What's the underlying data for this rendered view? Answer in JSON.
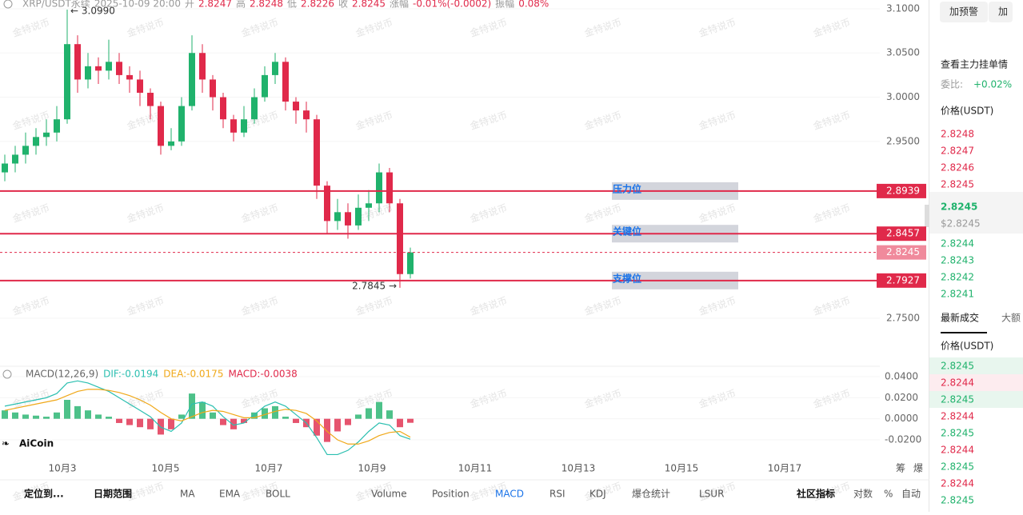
{
  "header": {
    "symbol": "XRP/USDT永续",
    "time": "2025-10-09 20:00",
    "open_label": "开",
    "open": "2.8247",
    "high_label": "高",
    "high": "2.8248",
    "low_label": "低",
    "low": "2.8226",
    "close_label": "收",
    "close": "2.8245",
    "change_label": "涨幅",
    "change": "-0.01%(-0.0002)",
    "amp_label": "振幅",
    "amp": "0.08%"
  },
  "watermark": "金特说币",
  "chart_data": [
    {
      "type": "candlestick",
      "ylim": [
        2.6985,
        3.1099
      ],
      "yticks": [
        {
          "value": 2.75,
          "label": "2.7500"
        },
        {
          "value": 2.95,
          "label": "2.9500"
        },
        {
          "value": 3.0,
          "label": "3.0000"
        },
        {
          "value": 3.05,
          "label": "3.0500"
        },
        {
          "value": 3.1,
          "label": "3.1000"
        }
      ],
      "open": [
        2.915,
        2.925,
        2.935,
        2.945,
        2.955,
        2.96,
        2.975,
        3.06,
        3.02,
        3.035,
        3.03,
        3.04,
        3.025,
        3.02,
        3.005,
        2.99,
        2.945,
        2.95,
        2.99,
        3.05,
        3.02,
        3.0,
        2.975,
        2.96,
        2.975,
        3.0,
        3.025,
        3.04,
        2.995,
        2.985,
        2.975,
        2.9,
        2.86,
        2.87,
        2.855,
        2.875,
        2.88,
        2.915,
        2.88,
        2.8
      ],
      "high": [
        2.935,
        2.945,
        2.96,
        2.965,
        2.975,
        2.99,
        3.099,
        3.07,
        3.05,
        3.045,
        3.065,
        3.05,
        3.035,
        3.03,
        3.01,
        2.995,
        2.965,
        3.0,
        3.07,
        3.06,
        3.025,
        3.005,
        2.98,
        2.99,
        3.01,
        3.035,
        3.05,
        3.045,
        3.0,
        2.995,
        2.98,
        2.905,
        2.885,
        2.88,
        2.89,
        2.895,
        2.925,
        2.92,
        2.885,
        2.83
      ],
      "low": [
        2.905,
        2.915,
        2.925,
        2.935,
        2.945,
        2.95,
        2.97,
        3.005,
        3.01,
        3.015,
        3.02,
        3.015,
        3.005,
        2.99,
        2.975,
        2.935,
        2.94,
        2.945,
        2.985,
        3.005,
        2.985,
        2.965,
        2.95,
        2.955,
        2.97,
        2.995,
        3.015,
        2.985,
        2.97,
        2.96,
        2.885,
        2.845,
        2.85,
        2.84,
        2.85,
        2.86,
        2.87,
        2.87,
        2.7845,
        2.795
      ],
      "close": [
        2.925,
        2.935,
        2.945,
        2.955,
        2.96,
        2.975,
        3.06,
        3.02,
        3.035,
        3.03,
        3.04,
        3.025,
        3.02,
        3.005,
        2.99,
        2.945,
        2.95,
        2.99,
        3.05,
        3.02,
        3.0,
        2.975,
        2.96,
        2.975,
        3.0,
        3.025,
        3.04,
        2.995,
        2.985,
        2.975,
        2.9,
        2.86,
        2.87,
        2.855,
        2.875,
        2.88,
        2.915,
        2.88,
        2.8,
        2.8245
      ],
      "max_note": "← 3.0990",
      "min_note": "2.7845 →",
      "levels": [
        {
          "label": "压力位",
          "value": 2.8939
        },
        {
          "label": "关键位",
          "value": 2.8457
        },
        {
          "label": "支撑位",
          "value": 2.7927
        }
      ],
      "current": 2.8245,
      "x_labels": [
        "10月3",
        "10月5",
        "10月7",
        "10月9",
        "10月11",
        "10月13",
        "10月15",
        "10月17"
      ]
    },
    {
      "type": "macd",
      "title": "MACD(12,26,9)",
      "dif_label": "DIF:-0.0194",
      "dea_label": "DEA:-0.0175",
      "macd_label": "MACD:-0.0038",
      "ylim": [
        -0.0352,
        0.0484
      ],
      "yticks": [
        {
          "value": -0.02,
          "label": "-0.0200"
        },
        {
          "value": 0,
          "label": "0.0000"
        },
        {
          "value": 0.02,
          "label": "0.0200"
        },
        {
          "value": 0.04,
          "label": "0.0400"
        }
      ],
      "series": [
        {
          "name": "DIF",
          "color": "#2bbfb0",
          "values": [
            0.012,
            0.014,
            0.016,
            0.018,
            0.02,
            0.024,
            0.034,
            0.036,
            0.034,
            0.03,
            0.026,
            0.02,
            0.014,
            0.008,
            0.002,
            -0.008,
            -0.012,
            -0.004,
            0.014,
            0.016,
            0.012,
            0.002,
            -0.006,
            -0.004,
            0.004,
            0.012,
            0.016,
            0.012,
            0.004,
            -0.004,
            -0.018,
            -0.034,
            -0.034,
            -0.03,
            -0.022,
            -0.012,
            -0.004,
            -0.006,
            -0.016,
            -0.0194
          ]
        },
        {
          "name": "DEA",
          "color": "#f0a818",
          "values": [
            0.008,
            0.01,
            0.012,
            0.014,
            0.016,
            0.018,
            0.022,
            0.026,
            0.028,
            0.028,
            0.027,
            0.025,
            0.022,
            0.018,
            0.013,
            0.006,
            0.0,
            -0.002,
            0.002,
            0.006,
            0.008,
            0.007,
            0.004,
            0.001,
            0.001,
            0.004,
            0.007,
            0.009,
            0.008,
            0.005,
            -0.002,
            -0.012,
            -0.02,
            -0.024,
            -0.024,
            -0.021,
            -0.016,
            -0.013,
            -0.012,
            -0.0175
          ]
        },
        {
          "name": "MACD",
          "values": [
            0.008,
            0.006,
            0.004,
            0.003,
            0.002,
            0.006,
            0.018,
            0.012,
            0.008,
            0.004,
            0.002,
            -0.004,
            -0.006,
            -0.008,
            -0.01,
            -0.015,
            -0.01,
            0.004,
            0.024,
            0.016,
            0.006,
            -0.006,
            -0.01,
            -0.004,
            0.006,
            0.01,
            0.012,
            0.002,
            -0.004,
            -0.008,
            -0.016,
            -0.022,
            -0.012,
            -0.006,
            0.004,
            0.01,
            0.016,
            0.008,
            -0.008,
            -0.0038
          ]
        }
      ]
    }
  ],
  "logo": "AiCoin",
  "side_icons": [
    "筹",
    "爆"
  ],
  "toolbar": [
    "定位到...",
    "日期范围",
    "MA",
    "EMA",
    "BOLL",
    "Volume",
    "Position",
    "MACD",
    "RSI",
    "KDJ",
    "爆仓统计",
    "LSUR",
    "社区指标",
    "对数",
    "%",
    "自动"
  ],
  "panel": {
    "buttons": [
      "加预警",
      "加"
    ],
    "order_link": "查看主力挂单情",
    "ratio_label": "委比:",
    "ratio": "+0.02%",
    "price_head": "价格(USDT)",
    "asks": [
      "2.8248",
      "2.8247",
      "2.8246",
      "2.8245"
    ],
    "last": "2.8245",
    "last_usd": "$2.8245",
    "bids": [
      "2.8244",
      "2.8243",
      "2.8242",
      "2.8241"
    ],
    "tabs": [
      "最新成交",
      "大额"
    ],
    "trade_head": "价格(USDT)",
    "trades": [
      {
        "p": "2.8245",
        "side": "buy"
      },
      {
        "p": "2.8244",
        "side": "sell"
      },
      {
        "p": "2.8245",
        "side": "buy"
      },
      {
        "p": "2.8244",
        "side": "sell"
      },
      {
        "p": "2.8245",
        "side": "buy"
      },
      {
        "p": "2.8244",
        "side": "sell"
      },
      {
        "p": "2.8245",
        "side": "buy"
      },
      {
        "p": "2.8244",
        "side": "sell"
      },
      {
        "p": "2.8245",
        "side": "buy"
      }
    ]
  }
}
